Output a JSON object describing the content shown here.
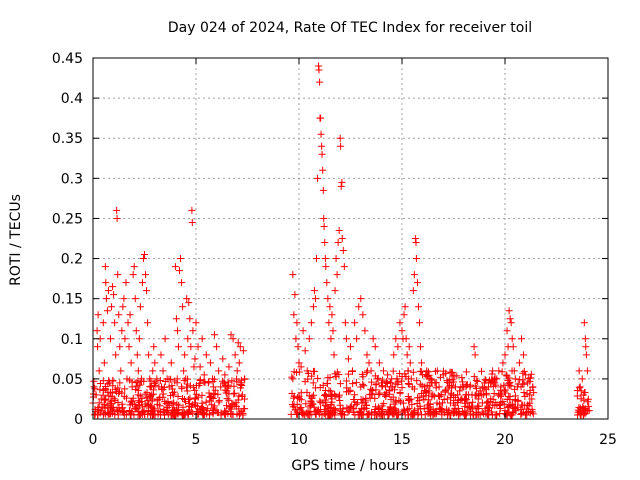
{
  "chart_data": {
    "type": "scatter",
    "title": "Day 024 of 2024, Rate Of TEC Index for receiver toil",
    "xlabel": "GPS time / hours",
    "ylabel": "ROTI / TECUs",
    "xlim": [
      0,
      25
    ],
    "ylim": [
      0,
      0.45
    ],
    "xticks": [
      0,
      5,
      10,
      15,
      20,
      25
    ],
    "xtick_labels": [
      "0",
      "5",
      "10",
      "15",
      "20",
      "25"
    ],
    "yticks": [
      0,
      0.05,
      0.1,
      0.15,
      0.2,
      0.25,
      0.3,
      0.35,
      0.4,
      0.45
    ],
    "ytick_labels": [
      "0",
      "0.05",
      "0.1",
      "0.15",
      "0.2",
      "0.25",
      "0.3",
      "0.35",
      "0.4",
      "0.45"
    ],
    "grid": true,
    "marker": "+",
    "color": "#ff0000",
    "series": [
      {
        "name": "ROTI",
        "points": [
          [
            0.0,
            0.02
          ],
          [
            0.05,
            0.04
          ],
          [
            0.1,
            0.012
          ],
          [
            0.15,
            0.03
          ],
          [
            0.2,
            0.11
          ],
          [
            0.22,
            0.09
          ],
          [
            0.25,
            0.13
          ],
          [
            0.3,
            0.06
          ],
          [
            0.35,
            0.1
          ],
          [
            0.4,
            0.025
          ],
          [
            0.45,
            0.015
          ],
          [
            0.5,
            0.12
          ],
          [
            0.55,
            0.07
          ],
          [
            0.6,
            0.19
          ],
          [
            0.62,
            0.17
          ],
          [
            0.65,
            0.15
          ],
          [
            0.7,
            0.135
          ],
          [
            0.75,
            0.16
          ],
          [
            0.8,
            0.045
          ],
          [
            0.85,
            0.1
          ],
          [
            0.9,
            0.14
          ],
          [
            0.95,
            0.165
          ],
          [
            1.0,
            0.155
          ],
          [
            1.05,
            0.12
          ],
          [
            1.1,
            0.08
          ],
          [
            1.15,
            0.26
          ],
          [
            1.17,
            0.25
          ],
          [
            1.2,
            0.18
          ],
          [
            1.25,
            0.13
          ],
          [
            1.3,
            0.09
          ],
          [
            1.35,
            0.06
          ],
          [
            1.4,
            0.11
          ],
          [
            1.45,
            0.14
          ],
          [
            1.5,
            0.15
          ],
          [
            1.55,
            0.1
          ],
          [
            1.6,
            0.17
          ],
          [
            1.65,
            0.05
          ],
          [
            1.7,
            0.12
          ],
          [
            1.75,
            0.09
          ],
          [
            1.8,
            0.13
          ],
          [
            1.85,
            0.07
          ],
          [
            1.9,
            0.04
          ],
          [
            1.95,
            0.18
          ],
          [
            2.0,
            0.19
          ],
          [
            2.05,
            0.15
          ],
          [
            2.1,
            0.11
          ],
          [
            2.15,
            0.08
          ],
          [
            2.2,
            0.06
          ],
          [
            2.25,
            0.1
          ],
          [
            2.3,
            0.14
          ],
          [
            2.35,
            0.05
          ],
          [
            2.4,
            0.17
          ],
          [
            2.45,
            0.2
          ],
          [
            2.5,
            0.205
          ],
          [
            2.55,
            0.18
          ],
          [
            2.6,
            0.16
          ],
          [
            2.65,
            0.12
          ],
          [
            2.7,
            0.08
          ],
          [
            2.75,
            0.05
          ],
          [
            2.8,
            0.04
          ],
          [
            2.85,
            0.03
          ],
          [
            2.9,
            0.06
          ],
          [
            2.95,
            0.09
          ],
          [
            3.0,
            0.07
          ],
          [
            3.1,
            0.05
          ],
          [
            3.2,
            0.04
          ],
          [
            3.3,
            0.08
          ],
          [
            3.4,
            0.06
          ],
          [
            3.5,
            0.1
          ],
          [
            3.6,
            0.05
          ],
          [
            3.7,
            0.04
          ],
          [
            3.8,
            0.07
          ],
          [
            3.9,
            0.03
          ],
          [
            4.0,
            0.19
          ],
          [
            4.05,
            0.125
          ],
          [
            4.1,
            0.11
          ],
          [
            4.15,
            0.09
          ],
          [
            4.2,
            0.185
          ],
          [
            4.25,
            0.2
          ],
          [
            4.3,
            0.17
          ],
          [
            4.35,
            0.14
          ],
          [
            4.4,
            0.06
          ],
          [
            4.45,
            0.08
          ],
          [
            4.5,
            0.05
          ],
          [
            4.55,
            0.15
          ],
          [
            4.6,
            0.1
          ],
          [
            4.65,
            0.145
          ],
          [
            4.7,
            0.125
          ],
          [
            4.75,
            0.09
          ],
          [
            4.8,
            0.26
          ],
          [
            4.82,
            0.245
          ],
          [
            4.85,
            0.11
          ],
          [
            4.9,
            0.065
          ],
          [
            4.95,
            0.075
          ],
          [
            5.0,
            0.12
          ],
          [
            5.1,
            0.09
          ],
          [
            5.2,
            0.065
          ],
          [
            5.3,
            0.1
          ],
          [
            5.4,
            0.055
          ],
          [
            5.5,
            0.08
          ],
          [
            5.6,
            0.045
          ],
          [
            5.7,
            0.07
          ],
          [
            5.8,
            0.05
          ],
          [
            5.9,
            0.105
          ],
          [
            6.0,
            0.09
          ],
          [
            6.1,
            0.06
          ],
          [
            6.2,
            0.04
          ],
          [
            6.3,
            0.075
          ],
          [
            6.4,
            0.055
          ],
          [
            6.5,
            0.035
          ],
          [
            6.6,
            0.065
          ],
          [
            6.7,
            0.105
          ],
          [
            6.8,
            0.1
          ],
          [
            6.9,
            0.08
          ],
          [
            7.0,
            0.06
          ],
          [
            7.05,
            0.095
          ],
          [
            7.1,
            0.07
          ],
          [
            7.15,
            0.09
          ],
          [
            7.2,
            0.045
          ],
          [
            7.25,
            0.03
          ],
          [
            7.3,
            0.085
          ],
          [
            7.35,
            0.05
          ],
          [
            9.7,
            0.18
          ],
          [
            9.75,
            0.13
          ],
          [
            9.8,
            0.155
          ],
          [
            9.85,
            0.1
          ],
          [
            9.9,
            0.12
          ],
          [
            9.95,
            0.09
          ],
          [
            10.0,
            0.07
          ],
          [
            10.1,
            0.065
          ],
          [
            10.2,
            0.11
          ],
          [
            10.3,
            0.085
          ],
          [
            10.4,
            0.06
          ],
          [
            10.5,
            0.1
          ],
          [
            10.6,
            0.12
          ],
          [
            10.7,
            0.14
          ],
          [
            10.75,
            0.16
          ],
          [
            10.8,
            0.15
          ],
          [
            10.85,
            0.2
          ],
          [
            10.9,
            0.3
          ],
          [
            10.95,
            0.44
          ],
          [
            10.97,
            0.435
          ],
          [
            11.0,
            0.42
          ],
          [
            11.02,
            0.375
          ],
          [
            11.05,
            0.375
          ],
          [
            11.07,
            0.355
          ],
          [
            11.1,
            0.34
          ],
          [
            11.12,
            0.33
          ],
          [
            11.15,
            0.31
          ],
          [
            11.18,
            0.285
          ],
          [
            11.2,
            0.25
          ],
          [
            11.22,
            0.24
          ],
          [
            11.25,
            0.22
          ],
          [
            11.28,
            0.2
          ],
          [
            11.3,
            0.19
          ],
          [
            11.35,
            0.17
          ],
          [
            11.4,
            0.15
          ],
          [
            11.45,
            0.12
          ],
          [
            11.5,
            0.14
          ],
          [
            11.55,
            0.1
          ],
          [
            11.6,
            0.13
          ],
          [
            11.65,
            0.11
          ],
          [
            11.7,
            0.08
          ],
          [
            11.75,
            0.16
          ],
          [
            11.8,
            0.2
          ],
          [
            11.85,
            0.18
          ],
          [
            11.9,
            0.22
          ],
          [
            11.95,
            0.235
          ],
          [
            12.0,
            0.35
          ],
          [
            12.02,
            0.34
          ],
          [
            12.05,
            0.29
          ],
          [
            12.08,
            0.295
          ],
          [
            12.1,
            0.225
          ],
          [
            12.15,
            0.21
          ],
          [
            12.2,
            0.19
          ],
          [
            12.25,
            0.12
          ],
          [
            12.3,
            0.1
          ],
          [
            12.4,
            0.075
          ],
          [
            12.5,
            0.09
          ],
          [
            12.6,
            0.06
          ],
          [
            12.7,
            0.12
          ],
          [
            12.8,
            0.1
          ],
          [
            12.9,
            0.14
          ],
          [
            13.0,
            0.15
          ],
          [
            13.1,
            0.13
          ],
          [
            13.2,
            0.11
          ],
          [
            13.3,
            0.08
          ],
          [
            13.4,
            0.07
          ],
          [
            13.5,
            0.06
          ],
          [
            13.6,
            0.1
          ],
          [
            13.7,
            0.09
          ],
          [
            13.8,
            0.05
          ],
          [
            13.9,
            0.07
          ],
          [
            14.0,
            0.045
          ],
          [
            14.1,
            0.06
          ],
          [
            14.2,
            0.04
          ],
          [
            14.3,
            0.055
          ],
          [
            14.4,
            0.035
          ],
          [
            14.5,
            0.05
          ],
          [
            14.6,
            0.08
          ],
          [
            14.7,
            0.1
          ],
          [
            14.8,
            0.09
          ],
          [
            14.9,
            0.12
          ],
          [
            15.0,
            0.11
          ],
          [
            15.05,
            0.1
          ],
          [
            15.1,
            0.13
          ],
          [
            15.15,
            0.14
          ],
          [
            15.2,
            0.1
          ],
          [
            15.25,
            0.08
          ],
          [
            15.3,
            0.06
          ],
          [
            15.35,
            0.09
          ],
          [
            15.4,
            0.07
          ],
          [
            15.45,
            0.05
          ],
          [
            15.5,
            0.04
          ],
          [
            15.55,
            0.16
          ],
          [
            15.6,
            0.18
          ],
          [
            15.65,
            0.225
          ],
          [
            15.68,
            0.22
          ],
          [
            15.7,
            0.2
          ],
          [
            15.75,
            0.17
          ],
          [
            15.8,
            0.14
          ],
          [
            15.85,
            0.12
          ],
          [
            15.9,
            0.09
          ],
          [
            15.95,
            0.07
          ],
          [
            16.0,
            0.055
          ],
          [
            16.1,
            0.04
          ],
          [
            16.2,
            0.06
          ],
          [
            16.3,
            0.035
          ],
          [
            16.4,
            0.05
          ],
          [
            16.5,
            0.03
          ],
          [
            16.6,
            0.045
          ],
          [
            16.7,
            0.02
          ],
          [
            16.8,
            0.04
          ],
          [
            16.9,
            0.03
          ],
          [
            17.0,
            0.055
          ],
          [
            17.1,
            0.035
          ],
          [
            17.2,
            0.025
          ],
          [
            17.3,
            0.045
          ],
          [
            17.4,
            0.03
          ],
          [
            17.5,
            0.02
          ],
          [
            17.6,
            0.04
          ],
          [
            17.7,
            0.03
          ],
          [
            17.8,
            0.035
          ],
          [
            17.9,
            0.025
          ],
          [
            18.0,
            0.04
          ],
          [
            18.1,
            0.03
          ],
          [
            18.2,
            0.02
          ],
          [
            18.3,
            0.04
          ],
          [
            18.4,
            0.03
          ],
          [
            18.5,
            0.09
          ],
          [
            18.55,
            0.08
          ],
          [
            18.6,
            0.03
          ],
          [
            18.7,
            0.025
          ],
          [
            18.8,
            0.035
          ],
          [
            18.9,
            0.04
          ],
          [
            19.0,
            0.045
          ],
          [
            19.1,
            0.03
          ],
          [
            19.2,
            0.04
          ],
          [
            19.3,
            0.045
          ],
          [
            19.4,
            0.06
          ],
          [
            19.5,
            0.045
          ],
          [
            19.6,
            0.05
          ],
          [
            19.7,
            0.06
          ],
          [
            19.8,
            0.04
          ],
          [
            19.9,
            0.07
          ],
          [
            20.0,
            0.08
          ],
          [
            20.1,
            0.11
          ],
          [
            20.15,
            0.09
          ],
          [
            20.2,
            0.135
          ],
          [
            20.25,
            0.125
          ],
          [
            20.3,
            0.12
          ],
          [
            20.35,
            0.1
          ],
          [
            20.4,
            0.09
          ],
          [
            20.45,
            0.06
          ],
          [
            20.5,
            0.05
          ],
          [
            20.6,
            0.04
          ],
          [
            20.7,
            0.07
          ],
          [
            20.8,
            0.1
          ],
          [
            20.9,
            0.08
          ],
          [
            21.0,
            0.055
          ],
          [
            21.1,
            0.045
          ],
          [
            21.2,
            0.03
          ],
          [
            21.3,
            0.025
          ],
          [
            21.35,
            0.04
          ],
          [
            23.6,
            0.06
          ],
          [
            23.65,
            0.04
          ],
          [
            23.7,
            0.035
          ],
          [
            23.75,
            0.05
          ],
          [
            23.8,
            0.03
          ],
          [
            23.85,
            0.12
          ],
          [
            23.9,
            0.1
          ],
          [
            23.92,
            0.09
          ],
          [
            23.95,
            0.08
          ],
          [
            24.0,
            0.06
          ]
        ]
      }
    ],
    "dense_bands": [
      {
        "x_start": 0.0,
        "x_end": 7.4,
        "y_floor": 0.005,
        "y_ceiling": 0.05
      },
      {
        "x_start": 9.6,
        "x_end": 21.4,
        "y_floor": 0.005,
        "y_ceiling": 0.06
      },
      {
        "x_start": 23.5,
        "x_end": 24.1,
        "y_floor": 0.005,
        "y_ceiling": 0.04
      }
    ]
  }
}
